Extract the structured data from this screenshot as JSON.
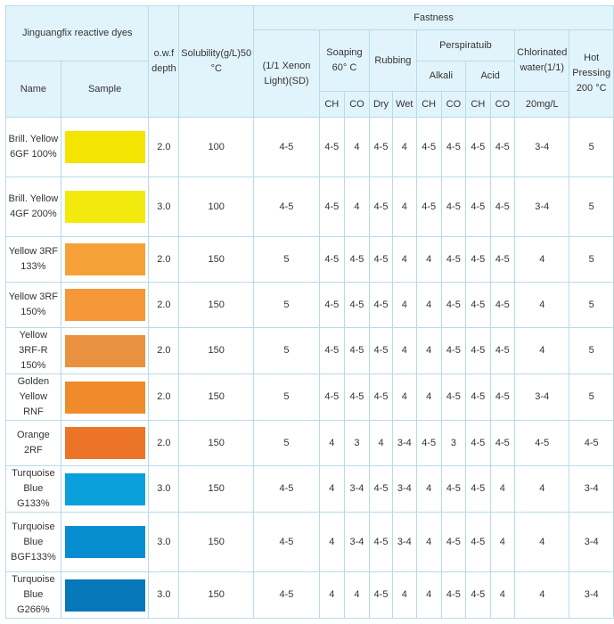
{
  "headers": {
    "product_line": "Jinguangfix reactive dyes",
    "owf": "o.w.f depth",
    "solubility": "Solubility(g/L)50 °C",
    "fastness": "Fastness",
    "light": "(1/1 Xenon Light)(SD)",
    "soaping": "Soaping 60° C",
    "rubbing": "Rubbing",
    "perspiration": "Perspiratuib",
    "chlorinated": "Chlorinated water(1/1)",
    "hot_pressing": "Hot Pressing 200 °C",
    "alkali": "Alkali",
    "acid": "Acid",
    "name": "Name",
    "sample": "Sample",
    "ch": "CH",
    "co": "CO",
    "dry": "Dry",
    "wet": "Wet",
    "chlorine_conc": "20mg/L"
  },
  "rows": [
    {
      "name": "Brill. Yellow 6GF 100%",
      "color": "#f4e401",
      "owf": "2.0",
      "sol": "100",
      "light": "4-5",
      "soap_ch": "4-5",
      "soap_co": "4",
      "rub_dry": "4-5",
      "rub_wet": "4",
      "alk_ch": "4-5",
      "alk_co": "4-5",
      "acid_ch": "4-5",
      "acid_co": "4-5",
      "chlorine": "3-4",
      "hot": "5"
    },
    {
      "name": "Brill. Yellow 4GF 200%",
      "color": "#f2ea0c",
      "owf": "3.0",
      "sol": "100",
      "light": "4-5",
      "soap_ch": "4-5",
      "soap_co": "4",
      "rub_dry": "4-5",
      "rub_wet": "4",
      "alk_ch": "4-5",
      "alk_co": "4-5",
      "acid_ch": "4-5",
      "acid_co": "4-5",
      "chlorine": "3-4",
      "hot": "5"
    },
    {
      "name": "Yellow 3RF 133%",
      "color": "#f6a137",
      "owf": "2.0",
      "sol": "150",
      "light": "5",
      "soap_ch": "4-5",
      "soap_co": "4-5",
      "rub_dry": "4-5",
      "rub_wet": "4",
      "alk_ch": "4",
      "alk_co": "4-5",
      "acid_ch": "4-5",
      "acid_co": "4-5",
      "chlorine": "4",
      "hot": "5"
    },
    {
      "name": "Yellow 3RF 150%",
      "color": "#f6973a",
      "owf": "2.0",
      "sol": "150",
      "light": "5",
      "soap_ch": "4-5",
      "soap_co": "4-5",
      "rub_dry": "4-5",
      "rub_wet": "4",
      "alk_ch": "4",
      "alk_co": "4-5",
      "acid_ch": "4-5",
      "acid_co": "4-5",
      "chlorine": "4",
      "hot": "5"
    },
    {
      "name": "Yellow 3RF-R 150%",
      "color": "#e9913f",
      "owf": "2.0",
      "sol": "150",
      "light": "5",
      "soap_ch": "4-5",
      "soap_co": "4-5",
      "rub_dry": "4-5",
      "rub_wet": "4",
      "alk_ch": "4",
      "alk_co": "4-5",
      "acid_ch": "4-5",
      "acid_co": "4-5",
      "chlorine": "4",
      "hot": "5"
    },
    {
      "name": "Golden Yellow RNF",
      "color": "#f08b2c",
      "owf": "2.0",
      "sol": "150",
      "light": "5",
      "soap_ch": "4-5",
      "soap_co": "4-5",
      "rub_dry": "4-5",
      "rub_wet": "4",
      "alk_ch": "4",
      "alk_co": "4-5",
      "acid_ch": "4-5",
      "acid_co": "4-5",
      "chlorine": "3-4",
      "hot": "5"
    },
    {
      "name": "Orange 2RF",
      "color": "#ec7427",
      "owf": "2.0",
      "sol": "150",
      "light": "5",
      "soap_ch": "4",
      "soap_co": "3",
      "rub_dry": "4",
      "rub_wet": "3-4",
      "alk_ch": "4-5",
      "alk_co": "3",
      "acid_ch": "4-5",
      "acid_co": "4-5",
      "chlorine": "4-5",
      "hot": "4-5"
    },
    {
      "name": "Turquoise Blue G133%",
      "color": "#0aa0dc",
      "owf": "3.0",
      "sol": "150",
      "light": "4-5",
      "soap_ch": "4",
      "soap_co": "3-4",
      "rub_dry": "4-5",
      "rub_wet": "3-4",
      "alk_ch": "4",
      "alk_co": "4-5",
      "acid_ch": "4-5",
      "acid_co": "4",
      "chlorine": "4",
      "hot": "3-4"
    },
    {
      "name": "Turquoise Blue BGF133%",
      "color": "#078ed1",
      "owf": "3.0",
      "sol": "150",
      "light": "4-5",
      "soap_ch": "4",
      "soap_co": "3-4",
      "rub_dry": "4-5",
      "rub_wet": "3-4",
      "alk_ch": "4",
      "alk_co": "4-5",
      "acid_ch": "4-5",
      "acid_co": "4",
      "chlorine": "4",
      "hot": "3-4"
    },
    {
      "name": "Turquoise Blue G266%",
      "color": "#0677b9",
      "owf": "3.0",
      "sol": "150",
      "light": "4-5",
      "soap_ch": "4",
      "soap_co": "4",
      "rub_dry": "4-5",
      "rub_wet": "4",
      "alk_ch": "4",
      "alk_co": "4-5",
      "acid_ch": "4-5",
      "acid_co": "4",
      "chlorine": "4",
      "hot": "3-4"
    }
  ]
}
